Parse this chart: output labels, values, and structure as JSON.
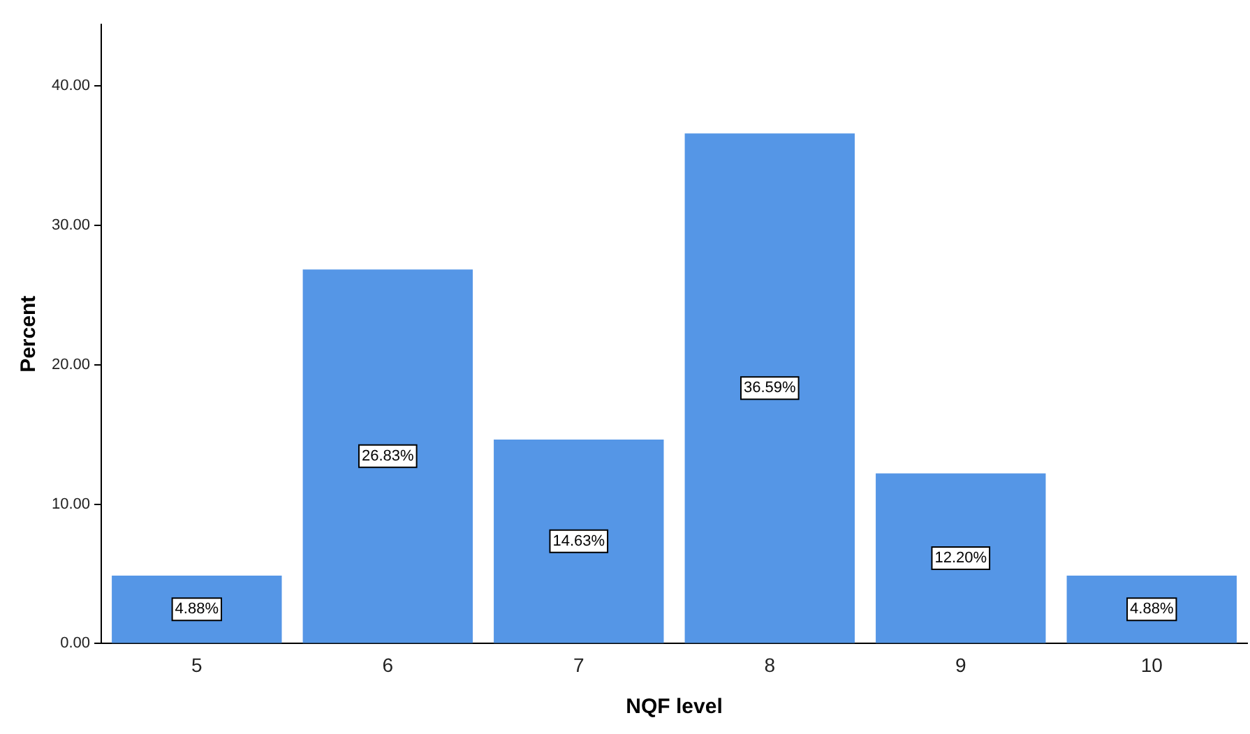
{
  "chart_data": {
    "type": "bar",
    "xlabel": "NQF level",
    "ylabel": "Percent",
    "categories": [
      "5",
      "6",
      "7",
      "8",
      "9",
      "10"
    ],
    "values": [
      4.88,
      26.83,
      14.63,
      36.59,
      12.2,
      4.88
    ],
    "value_labels": [
      "4.88%",
      "26.83%",
      "14.63%",
      "36.59%",
      "12.20%",
      "4.88%"
    ],
    "color": "#5596e6",
    "ylim": [
      0,
      44.4
    ],
    "yticks": [
      {
        "value": 0,
        "label": "0.00"
      },
      {
        "value": 10,
        "label": "10.00"
      },
      {
        "value": 20,
        "label": "20.00"
      },
      {
        "value": 30,
        "label": "30.00"
      },
      {
        "value": 40,
        "label": "40.00"
      }
    ],
    "grid": false,
    "legend": false
  }
}
